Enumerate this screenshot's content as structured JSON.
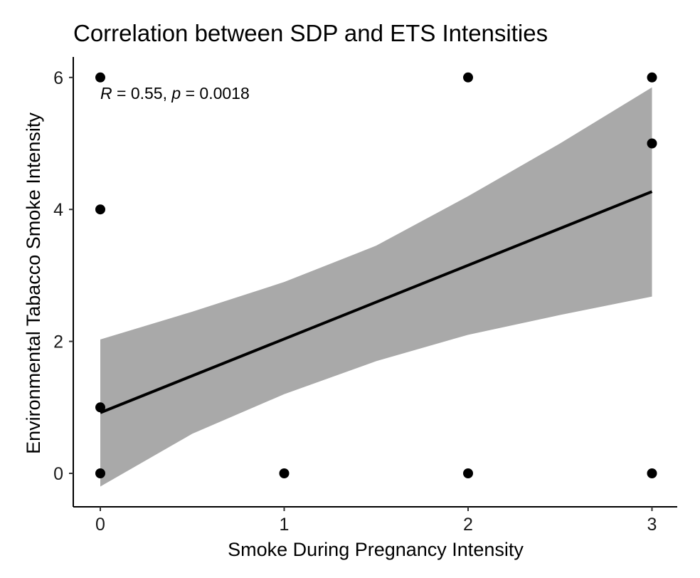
{
  "chart_data": {
    "type": "scatter",
    "title": "Correlation between SDP and ETS Intensities",
    "xlabel": "Smoke During Pregnancy Intensity",
    "ylabel": "Environmental Tabacco Smoke Intensity",
    "xlim": [
      -0.15,
      3.15
    ],
    "ylim": [
      -0.5,
      6.3
    ],
    "xticks": [
      0,
      1,
      2,
      3
    ],
    "yticks": [
      0,
      2,
      4,
      6
    ],
    "grid": false,
    "points": [
      {
        "x": 0,
        "y": 6
      },
      {
        "x": 0,
        "y": 4
      },
      {
        "x": 0,
        "y": 1
      },
      {
        "x": 0,
        "y": 0
      },
      {
        "x": 1,
        "y": 0
      },
      {
        "x": 2,
        "y": 6
      },
      {
        "x": 2,
        "y": 0
      },
      {
        "x": 3,
        "y": 6
      },
      {
        "x": 3,
        "y": 5
      },
      {
        "x": 3,
        "y": 0
      }
    ],
    "regression": {
      "x": [
        0,
        0.5,
        1,
        1.5,
        2,
        2.5,
        3
      ],
      "fit": [
        0.92,
        1.48,
        2.03,
        2.59,
        3.15,
        3.71,
        4.27
      ],
      "lower": [
        -0.2,
        0.6,
        1.2,
        1.7,
        2.1,
        2.4,
        2.68
      ],
      "upper": [
        2.03,
        2.45,
        2.9,
        3.45,
        4.2,
        5.0,
        5.85
      ]
    },
    "annotation": {
      "r_symbol": "R",
      "r_text": " = 0.55, ",
      "p_symbol": "p",
      "p_text": " = 0.0018"
    },
    "colors": {
      "points": "#000000",
      "line": "#000000",
      "band": "#a9a9a9"
    }
  }
}
